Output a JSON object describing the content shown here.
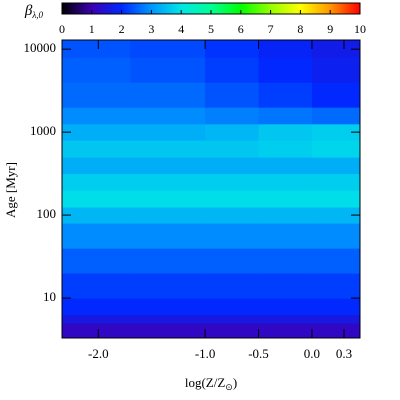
{
  "chart_data": {
    "type": "heatmap",
    "colorbar_label": [
      "β",
      "λ,0"
    ],
    "xlabel": [
      "log(Z/Z",
      "⊙",
      ")"
    ],
    "ylabel": "Age [Myr]",
    "x_edges": [
      -2.34,
      -1.7,
      -1.0,
      -0.5,
      0.0,
      0.45
    ],
    "y_edges": [
      3.3,
      5,
      6.3,
      10,
      20,
      40,
      80,
      125,
      200,
      316,
      500,
      800,
      1260,
      2000,
      4000,
      8000,
      12900
    ],
    "values": [
      [
        1.2,
        1.2,
        1.2,
        1.2,
        1.2
      ],
      [
        1.6,
        1.6,
        1.6,
        1.6,
        1.6
      ],
      [
        2.0,
        2.0,
        2.0,
        2.0,
        2.0
      ],
      [
        2.2,
        2.2,
        2.2,
        2.2,
        2.2
      ],
      [
        2.5,
        2.5,
        2.5,
        2.5,
        2.5
      ],
      [
        2.9,
        2.9,
        2.9,
        2.9,
        2.9
      ],
      [
        3.4,
        3.4,
        3.4,
        3.4,
        3.4
      ],
      [
        3.9,
        3.9,
        3.9,
        3.9,
        3.9
      ],
      [
        3.7,
        3.7,
        3.7,
        3.7,
        3.7
      ],
      [
        3.3,
        3.3,
        3.3,
        3.3,
        3.3
      ],
      [
        3.6,
        3.6,
        3.6,
        3.7,
        3.8
      ],
      [
        3.3,
        3.3,
        3.4,
        3.6,
        3.7
      ],
      [
        2.9,
        2.9,
        2.8,
        2.7,
        2.6
      ],
      [
        2.6,
        2.6,
        2.4,
        2.2,
        2.0
      ],
      [
        2.5,
        2.4,
        2.2,
        2.0,
        1.8
      ],
      [
        2.4,
        2.3,
        2.1,
        1.9,
        1.7
      ]
    ],
    "xlim": [
      -2.34,
      0.45
    ],
    "ylim": [
      3.3,
      12900
    ],
    "ylog": true,
    "xticks": [
      {
        "value": -2,
        "label": "-2.0"
      },
      {
        "value": -1,
        "label": "-1.0"
      },
      -0.5,
      {
        "value": 0,
        "label": "0.0"
      },
      0.3
    ],
    "yticks": [
      10,
      100,
      1000,
      10000
    ],
    "clim": [
      0,
      10
    ],
    "cticks": [
      0,
      1,
      2,
      3,
      4,
      5,
      6,
      7,
      8,
      9,
      10
    ],
    "colormap": [
      {
        "value": 0,
        "color": "#000000"
      },
      {
        "value": 1,
        "color": "#3c00b4"
      },
      {
        "value": 2,
        "color": "#0028ff"
      },
      {
        "value": 3,
        "color": "#0096ff"
      },
      {
        "value": 4,
        "color": "#00e6e6"
      },
      {
        "value": 5,
        "color": "#00ff96"
      },
      {
        "value": 6,
        "color": "#00ff00"
      },
      {
        "value": 7,
        "color": "#96ff00"
      },
      {
        "value": 8,
        "color": "#ffff00"
      },
      {
        "value": 9,
        "color": "#ff9600"
      },
      {
        "value": 10,
        "color": "#ff0000"
      }
    ]
  }
}
